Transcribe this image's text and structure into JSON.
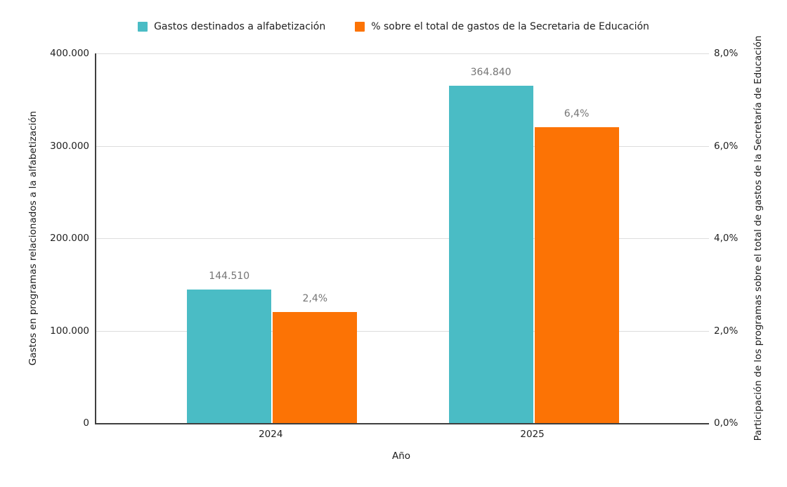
{
  "chart_data": {
    "type": "bar",
    "title": "",
    "categories": [
      "2024",
      "2025"
    ],
    "series": [
      {
        "name": "Gastos destinados a alfabetización",
        "axis": "left",
        "color": "#4ABCC5",
        "values": [
          144510,
          364840
        ],
        "value_labels": [
          "144.510",
          "364.840"
        ]
      },
      {
        "name": "% sobre el total de gastos de la Secretaria de Educación",
        "axis": "right",
        "color": "#FC7305",
        "values": [
          2.4,
          6.4
        ],
        "value_labels": [
          "2,4%",
          "6,4%"
        ]
      }
    ],
    "xlabel": "Año",
    "left_axis": {
      "title": "Gastos en programas relacionados a la alfabetización",
      "min": 0,
      "max": 400000,
      "tick_labels": [
        "0",
        "100.000",
        "200.000",
        "300.000",
        "400.000"
      ]
    },
    "right_axis": {
      "title": "Participación de los programas sobre el total de gastos de la Secretaría de Educación",
      "min": 0,
      "max": 8,
      "tick_labels": [
        "0,0%",
        "2,0%",
        "4,0%",
        "6,0%",
        "8,0%"
      ]
    },
    "legend_position": "top",
    "grid": true,
    "colors": {
      "gridline": "#DDDDDD",
      "axis_line": "#3F3F3F",
      "data_label": "#757575",
      "tick_label": "#222222"
    }
  }
}
